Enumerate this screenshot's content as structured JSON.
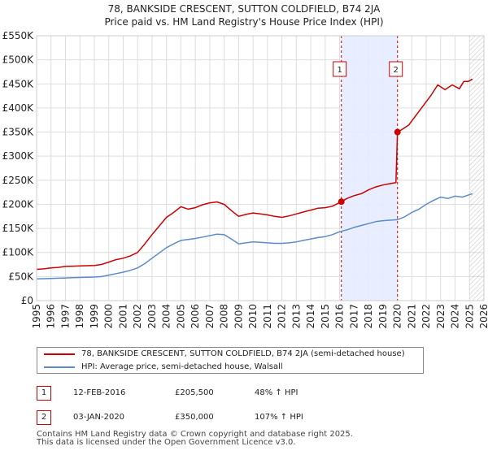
{
  "title": {
    "line1": "78, BANKSIDE CRESCENT, SUTTON COLDFIELD, B74 2JA",
    "line2": "Price paid vs. HM Land Registry's House Price Index (HPI)"
  },
  "colors": {
    "property": "#cc0000",
    "hpi": "#5b8cc8",
    "grid": "#dddddd",
    "shade": "#e6ecff",
    "forecast": "#aaaaaa"
  },
  "chart_data": {
    "type": "line",
    "xlim": [
      1995,
      2026
    ],
    "ylim": [
      0,
      550000
    ],
    "y_ticks": [
      {
        "value": 0,
        "label": "£0"
      },
      {
        "value": 50000,
        "label": "£50K"
      },
      {
        "value": 100000,
        "label": "£100K"
      },
      {
        "value": 150000,
        "label": "£150K"
      },
      {
        "value": 200000,
        "label": "£200K"
      },
      {
        "value": 250000,
        "label": "£250K"
      },
      {
        "value": 300000,
        "label": "£300K"
      },
      {
        "value": 350000,
        "label": "£350K"
      },
      {
        "value": 400000,
        "label": "£400K"
      },
      {
        "value": 450000,
        "label": "£450K"
      },
      {
        "value": 500000,
        "label": "£500K"
      },
      {
        "value": 550000,
        "label": "£550K"
      }
    ],
    "x_ticks": [
      1995,
      1996,
      1997,
      1998,
      1999,
      2000,
      2001,
      2002,
      2003,
      2004,
      2005,
      2006,
      2007,
      2008,
      2009,
      2010,
      2011,
      2012,
      2013,
      2014,
      2015,
      2016,
      2017,
      2018,
      2019,
      2020,
      2021,
      2022,
      2023,
      2024,
      2025,
      2026
    ],
    "grid": true,
    "shaded_period": [
      2016.12,
      2020.01
    ],
    "forecast_start": 2025.0,
    "series": [
      {
        "name": "78, BANKSIDE CRESCENT, SUTTON COLDFIELD, B74 2JA (semi-detached house)",
        "color": "#cc0000",
        "x": [
          1995,
          1995.5,
          1996,
          1996.5,
          1997,
          1997.5,
          1998,
          1998.5,
          1999,
          1999.5,
          2000,
          2000.5,
          2001,
          2001.5,
          2002,
          2002.5,
          2003,
          2003.5,
          2004,
          2004.5,
          2005,
          2005.5,
          2006,
          2006.5,
          2007,
          2007.5,
          2008,
          2008.5,
          2009,
          2009.5,
          2010,
          2010.5,
          2011,
          2011.5,
          2012,
          2012.5,
          2013,
          2013.5,
          2014,
          2014.5,
          2015,
          2015.5,
          2016.12,
          2016.5,
          2017,
          2017.5,
          2018,
          2018.5,
          2019,
          2019.5,
          2019.9,
          2020.01,
          2020.3,
          2020.8,
          2021.3,
          2021.8,
          2022.3,
          2022.8,
          2023.3,
          2023.8,
          2024.3,
          2024.6,
          2024.9,
          2025.2
        ],
        "y": [
          65000,
          66000,
          68000,
          69000,
          71000,
          71500,
          72000,
          72500,
          73000,
          75000,
          80000,
          85000,
          88000,
          93000,
          100000,
          118000,
          137000,
          155000,
          173000,
          183000,
          195000,
          190000,
          193000,
          199000,
          203000,
          205000,
          200000,
          187000,
          175000,
          179000,
          182000,
          180000,
          178000,
          175000,
          173000,
          176000,
          180000,
          184000,
          188000,
          192000,
          193000,
          196000,
          205500,
          212000,
          218000,
          222000,
          230000,
          236000,
          240000,
          243000,
          245000,
          350000,
          355000,
          365000,
          385000,
          405000,
          425000,
          448000,
          438000,
          448000,
          440000,
          455000,
          455000,
          460000
        ]
      },
      {
        "name": "HPI: Average price, semi-detached house, Walsall",
        "color": "#5b8cc8",
        "x": [
          1995,
          1995.5,
          1996,
          1996.5,
          1997,
          1997.5,
          1998,
          1998.5,
          1999,
          1999.5,
          2000,
          2000.5,
          2001,
          2001.5,
          2002,
          2002.5,
          2003,
          2003.5,
          2004,
          2004.5,
          2005,
          2005.5,
          2006,
          2006.5,
          2007,
          2007.5,
          2008,
          2008.5,
          2009,
          2009.5,
          2010,
          2010.5,
          2011,
          2011.5,
          2012,
          2012.5,
          2013,
          2013.5,
          2014,
          2014.5,
          2015,
          2015.5,
          2016,
          2016.5,
          2017,
          2017.5,
          2018,
          2018.5,
          2019,
          2019.5,
          2020,
          2020.5,
          2021,
          2021.5,
          2022,
          2022.5,
          2023,
          2023.5,
          2024,
          2024.5,
          2025,
          2025.2
        ],
        "y": [
          45000,
          45500,
          46000,
          46500,
          47000,
          47500,
          48000,
          48500,
          49000,
          50000,
          53000,
          56000,
          59000,
          63000,
          68000,
          77000,
          88000,
          99000,
          110000,
          118000,
          125000,
          127000,
          129000,
          132000,
          135000,
          138000,
          137000,
          128000,
          118000,
          120000,
          122000,
          121000,
          120000,
          119000,
          119000,
          120000,
          122000,
          125000,
          128000,
          131000,
          133000,
          137000,
          143000,
          147000,
          152000,
          156000,
          160000,
          164000,
          166000,
          167000,
          168000,
          174000,
          183000,
          190000,
          200000,
          208000,
          215000,
          212000,
          217000,
          215000,
          220000,
          222000
        ]
      }
    ],
    "sales": [
      {
        "id": "1",
        "x": 2016.12,
        "y": 205500
      },
      {
        "id": "2",
        "x": 2020.01,
        "y": 350000
      }
    ]
  },
  "legend": {
    "property_label": "78, BANKSIDE CRESCENT, SUTTON COLDFIELD, B74 2JA (semi-detached house)",
    "hpi_label": "HPI: Average price, semi-detached house, Walsall"
  },
  "annotations": [
    {
      "id": "1",
      "date": "12-FEB-2016",
      "price": "£205,500",
      "hpi": "48% ↑ HPI"
    },
    {
      "id": "2",
      "date": "03-JAN-2020",
      "price": "£350,000",
      "hpi": "107% ↑ HPI"
    }
  ],
  "footer": {
    "line1": "Contains HM Land Registry data © Crown copyright and database right 2025.",
    "line2": "This data is licensed under the Open Government Licence v3.0."
  }
}
